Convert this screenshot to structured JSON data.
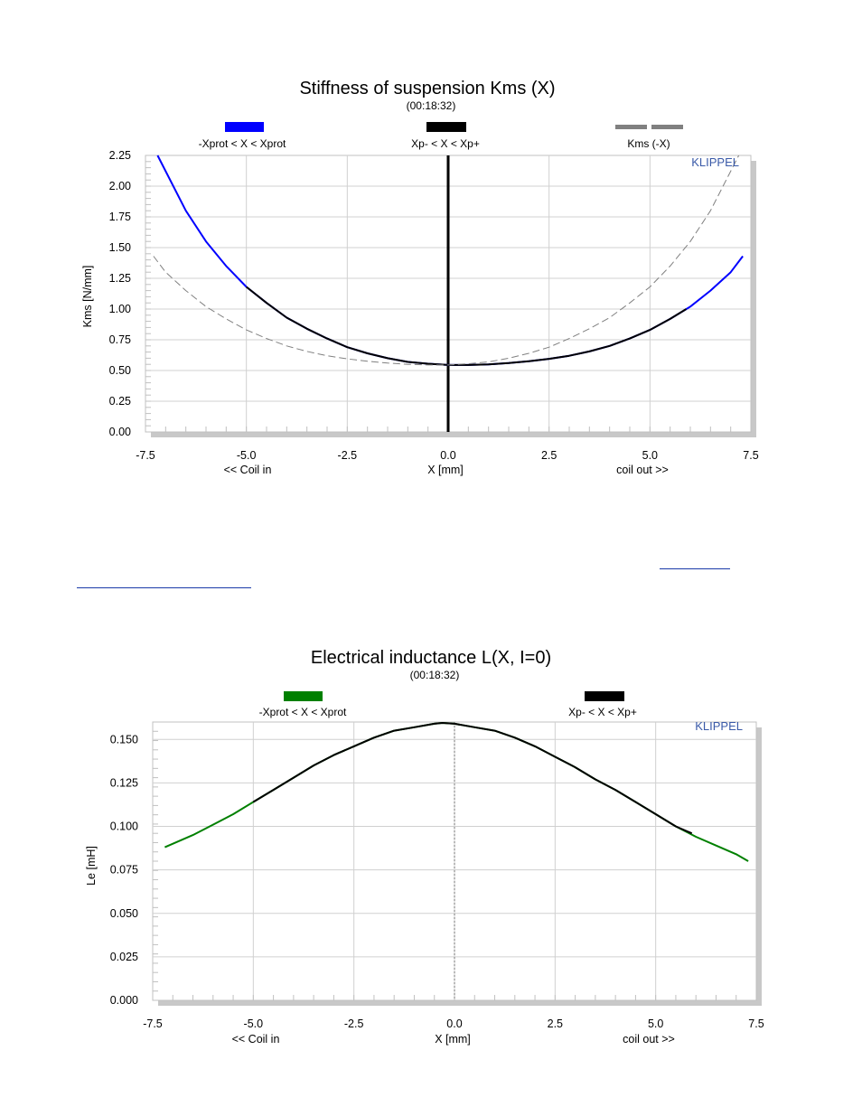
{
  "chart_data": [
    {
      "type": "line",
      "title": "Stiffness of suspension Kms (X)",
      "subtitle": "(00:18:32)",
      "ylabel": "Kms [N/mm]",
      "xlabel": "X [mm]",
      "x_note_left": "<< Coil in",
      "x_note_right": "coil out >>",
      "brand": "KLIPPEL",
      "xlim": [
        -7.5,
        7.5
      ],
      "ylim": [
        0,
        2.25
      ],
      "x_ticks": [
        "-7.5",
        "-5.0",
        "-2.5",
        "0.0",
        "2.5",
        "5.0",
        "7.5"
      ],
      "y_ticks": [
        "0.00",
        "0.25",
        "0.50",
        "0.75",
        "1.00",
        "1.25",
        "1.50",
        "1.75",
        "2.00",
        "2.25"
      ],
      "grid": true,
      "legend_position": "top",
      "vertical_marker_x": 0.0,
      "legend": [
        {
          "label": "-Xprot < X < Xprot",
          "color": "#0000ff",
          "style": "solid"
        },
        {
          "label": "Xp- < X < Xp+",
          "color": "#000000",
          "style": "solid"
        },
        {
          "label": "Kms (-X)",
          "color": "#808080",
          "style": "dashed"
        }
      ],
      "series": [
        {
          "name": "-Xprot < X < Xprot",
          "color": "#0000ff",
          "style": "solid",
          "x": [
            -7.2,
            -6.5,
            -6.0,
            -5.5,
            -5.0,
            -4.5,
            -4.0,
            -3.5,
            -3.0,
            -2.5,
            -2.0,
            -1.5,
            -1.0,
            -0.5,
            0.0,
            0.5,
            1.0,
            1.5,
            2.0,
            2.5,
            3.0,
            3.5,
            4.0,
            4.5,
            5.0,
            5.5,
            6.0,
            6.5,
            7.0,
            7.3
          ],
          "y": [
            2.25,
            1.8,
            1.55,
            1.35,
            1.18,
            1.05,
            0.93,
            0.84,
            0.76,
            0.69,
            0.64,
            0.6,
            0.57,
            0.555,
            0.545,
            0.545,
            0.55,
            0.56,
            0.575,
            0.595,
            0.62,
            0.655,
            0.7,
            0.76,
            0.83,
            0.92,
            1.02,
            1.15,
            1.3,
            1.43
          ]
        },
        {
          "name": "Xp- < X < Xp+",
          "color": "#000000",
          "style": "solid",
          "x": [
            -5.0,
            -4.5,
            -4.0,
            -3.5,
            -3.0,
            -2.5,
            -2.0,
            -1.5,
            -1.0,
            -0.5,
            0.0,
            0.5,
            1.0,
            1.5,
            2.0,
            2.5,
            3.0,
            3.5,
            4.0,
            4.5,
            5.0,
            5.5,
            5.9
          ],
          "y": [
            1.18,
            1.05,
            0.93,
            0.84,
            0.76,
            0.69,
            0.64,
            0.6,
            0.57,
            0.555,
            0.545,
            0.545,
            0.55,
            0.56,
            0.575,
            0.595,
            0.62,
            0.655,
            0.7,
            0.76,
            0.83,
            0.92,
            1.0
          ]
        },
        {
          "name": "Kms (-X)",
          "color": "#808080",
          "style": "dashed",
          "x": [
            -7.3,
            -7.0,
            -6.5,
            -6.0,
            -5.5,
            -5.0,
            -4.5,
            -4.0,
            -3.5,
            -3.0,
            -2.5,
            -2.0,
            -1.5,
            -1.0,
            -0.5,
            0.0,
            0.5,
            1.0,
            1.5,
            2.0,
            2.5,
            3.0,
            3.5,
            4.0,
            4.5,
            5.0,
            5.5,
            6.0,
            6.5,
            7.2
          ],
          "y": [
            1.43,
            1.3,
            1.15,
            1.02,
            0.92,
            0.83,
            0.76,
            0.7,
            0.655,
            0.62,
            0.595,
            0.575,
            0.56,
            0.55,
            0.545,
            0.545,
            0.555,
            0.57,
            0.6,
            0.64,
            0.69,
            0.76,
            0.84,
            0.93,
            1.05,
            1.18,
            1.35,
            1.55,
            1.8,
            2.25
          ]
        }
      ]
    },
    {
      "type": "line",
      "title": "Electrical inductance L(X, I=0)",
      "subtitle": "(00:18:32)",
      "ylabel": "Le [mH]",
      "xlabel": "X [mm]",
      "x_note_left": "<< Coil in",
      "x_note_right": "coil out >>",
      "brand": "KLIPPEL",
      "xlim": [
        -7.5,
        7.5
      ],
      "ylim": [
        0,
        0.16
      ],
      "x_ticks": [
        "-7.5",
        "-5.0",
        "-2.5",
        "0.0",
        "2.5",
        "5.0",
        "7.5"
      ],
      "y_ticks": [
        "0.000",
        "0.025",
        "0.050",
        "0.075",
        "0.100",
        "0.125",
        "0.150"
      ],
      "y_tick_values": [
        0,
        0.025,
        0.05,
        0.075,
        0.1,
        0.125,
        0.15
      ],
      "grid": true,
      "legend_position": "top",
      "vertical_marker_x": 0.0,
      "legend": [
        {
          "label": "-Xprot < X < Xprot",
          "color": "#008000",
          "style": "solid"
        },
        {
          "label": "Xp- < X < Xp+",
          "color": "#000000",
          "style": "solid"
        }
      ],
      "series": [
        {
          "name": "-Xprot < X < Xprot",
          "color": "#008000",
          "style": "solid",
          "x": [
            -7.2,
            -6.5,
            -6.0,
            -5.5,
            -5.0,
            -4.5,
            -4.0,
            -3.5,
            -3.0,
            -2.5,
            -2.0,
            -1.5,
            -1.0,
            -0.5,
            -0.3,
            0.0,
            0.5,
            1.0,
            1.5,
            2.0,
            2.5,
            3.0,
            3.5,
            4.0,
            4.5,
            5.0,
            5.5,
            6.0,
            6.5,
            7.0,
            7.3
          ],
          "y": [
            0.088,
            0.095,
            0.101,
            0.107,
            0.114,
            0.121,
            0.128,
            0.135,
            0.141,
            0.146,
            0.151,
            0.155,
            0.157,
            0.159,
            0.1595,
            0.159,
            0.157,
            0.155,
            0.151,
            0.146,
            0.14,
            0.134,
            0.127,
            0.121,
            0.114,
            0.107,
            0.1,
            0.094,
            0.089,
            0.084,
            0.08
          ]
        },
        {
          "name": "Xp- < X < Xp+",
          "color": "#000000",
          "style": "solid",
          "x": [
            -5.0,
            -4.5,
            -4.0,
            -3.5,
            -3.0,
            -2.5,
            -2.0,
            -1.5,
            -1.0,
            -0.5,
            -0.3,
            0.0,
            0.5,
            1.0,
            1.5,
            2.0,
            2.5,
            3.0,
            3.5,
            4.0,
            4.5,
            5.0,
            5.5,
            5.9
          ],
          "y": [
            0.114,
            0.121,
            0.128,
            0.135,
            0.141,
            0.146,
            0.151,
            0.155,
            0.157,
            0.159,
            0.1595,
            0.159,
            0.157,
            0.155,
            0.151,
            0.146,
            0.14,
            0.134,
            0.127,
            0.121,
            0.114,
            0.107,
            0.1,
            0.096
          ]
        }
      ]
    }
  ]
}
